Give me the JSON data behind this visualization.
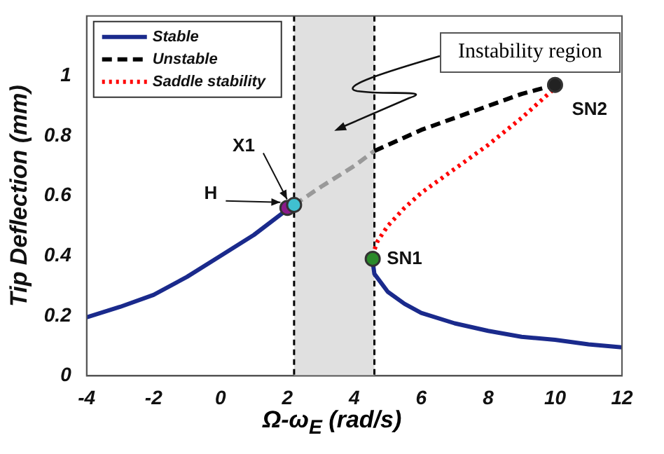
{
  "chart_data": {
    "type": "line",
    "xlabel": "Ω-ω$_{E}$ (rad/s)",
    "ylabel": "Tip Deflection (mm)",
    "xlim": [
      -4,
      12
    ],
    "xticks": [
      -4,
      -2,
      0,
      2,
      4,
      6,
      8,
      10,
      12
    ],
    "ylim": [
      0,
      1.2
    ],
    "yticks": [
      0,
      0.2,
      0.4,
      0.6,
      0.8,
      1
    ],
    "grid": false,
    "legend": "top left",
    "series": [
      {
        "name": "Stable",
        "color": "#1a2a8c",
        "line_style": "solid",
        "x": [
          -4,
          -3,
          -2,
          -1,
          0,
          1,
          2,
          2.1,
          null,
          4.55,
          4.6,
          5,
          5.5,
          6,
          7,
          8,
          9,
          10,
          11,
          12
        ],
        "values": [
          0.195,
          0.23,
          0.27,
          0.33,
          0.4,
          0.47,
          0.555,
          0.565,
          null,
          0.38,
          0.34,
          0.28,
          0.24,
          0.21,
          0.175,
          0.15,
          0.13,
          0.12,
          0.105,
          0.095
        ]
      },
      {
        "name": "Unstable",
        "color": "#000000",
        "line_style": "dashed",
        "x": [
          4.6,
          5,
          6,
          7,
          8,
          9,
          10
        ],
        "values": [
          0.75,
          0.77,
          0.82,
          0.86,
          0.9,
          0.94,
          0.97
        ]
      },
      {
        "name": "Saddle stability",
        "color": "#ff0000",
        "line_style": "dotted",
        "x": [
          4.55,
          4.6,
          4.7,
          5,
          5.5,
          6,
          7,
          8,
          9,
          10
        ],
        "values": [
          0.4,
          0.42,
          0.45,
          0.5,
          0.56,
          0.61,
          0.69,
          0.77,
          0.86,
          0.96
        ]
      },
      {
        "color": "#999999",
        "line_style": "dashed",
        "x": [
          2.2,
          3,
          4,
          4.6
        ],
        "values": [
          0.57,
          0.63,
          0.7,
          0.75
        ]
      },
      {
        "type": "scatter",
        "marker": "circle",
        "x": [
          2,
          2.2,
          4.55,
          10
        ],
        "values": [
          0.56,
          0.57,
          0.39,
          0.97
        ],
        "colors": [
          "#8b1a8b",
          "#40c0d0",
          "#2a8a2a",
          "#222222"
        ]
      }
    ],
    "bands": [
      {
        "axis": "x",
        "from": 2.2,
        "to": 4.6,
        "color": "#e0e0e0"
      }
    ],
    "ref_lines": [
      {
        "axis": "x",
        "value": 2.2,
        "color": "#000000",
        "line_style": "dashed"
      },
      {
        "axis": "x",
        "value": 4.6,
        "color": "#000000",
        "line_style": "dashed"
      }
    ],
    "annotations": [
      {
        "text": "H",
        "x": 2,
        "y": 0.56
      },
      {
        "text": "X1",
        "x": 2.2,
        "y": 0.57
      },
      {
        "text": "SN1",
        "x": 4.55,
        "y": 0.39
      },
      {
        "text": "SN2",
        "x": 10,
        "y": 0.97
      },
      "Instability region"
    ]
  }
}
